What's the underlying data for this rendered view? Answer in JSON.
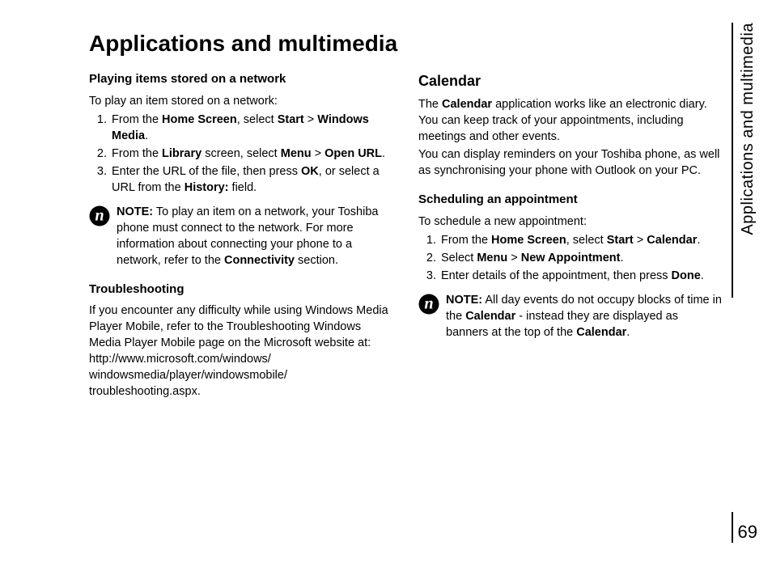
{
  "title": "Applications and multimedia",
  "side_label": "Applications and multimedia",
  "page_number": "69",
  "left": {
    "section1_title": "Playing items stored on a network",
    "section1_intro": "To play an item stored on a network:",
    "section1_steps": [
      "From the <b>Home Screen</b>, select <b>Start</b> > <b>Windows Media</b>.",
      "From the <b>Library</b> screen, select <b>Menu</b> > <b>Open URL</b>.",
      "Enter the URL of the file, then press <b>OK</b>, or select a URL from the <b>History:</b> field."
    ],
    "note1": "<b>NOTE:</b> To play an item on a network, your Toshiba phone must connect to the network. For more information about connecting your phone to a network, refer to the <b>Connectivity</b> section.",
    "section2_title": "Troubleshooting",
    "section2_body": "If you encounter any difficulty while using Windows Media Player Mobile, refer to the Troubleshooting Windows Media Player Mobile page on the Microsoft website at: http://www.microsoft.com/windows/ windowsmedia/player/windowsmobile/ troubleshooting.aspx."
  },
  "right": {
    "section1_title": "Calendar",
    "section1_body1": "The <b>Calendar</b> application works like an electronic diary. You can keep track of your appointments, including meetings and other events.",
    "section1_body2": "You can display reminders on your Toshiba phone, as well as synchronising your phone with Outlook on your PC.",
    "section2_title": "Scheduling an appointment",
    "section2_intro": "To schedule a new appointment:",
    "section2_steps": [
      "From the <b>Home Screen</b>, select <b>Start</b> > <b>Calendar</b>.",
      "Select <b>Menu</b> > <b>New Appointment</b>.",
      "Enter details of the appointment, then press <b>Done</b>."
    ],
    "note1": "<b>NOTE:</b> All day events do not occupy blocks of time in the <b>Calendar</b> - instead they are displayed as banners at the top of the <b>Calendar</b>."
  }
}
